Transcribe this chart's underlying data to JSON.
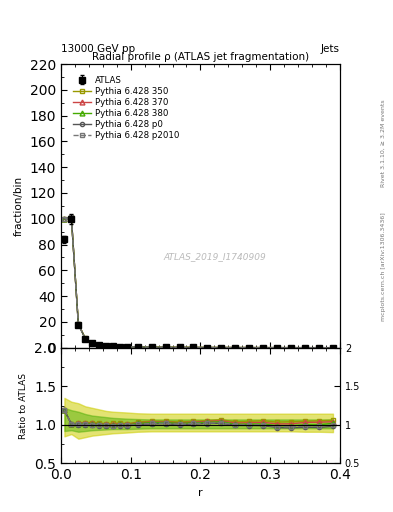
{
  "title_top": "13000 GeV pp",
  "title_right": "Jets",
  "plot_title": "Radial profile ρ (ATLAS jet fragmentation)",
  "xlabel": "r",
  "ylabel_main": "fraction/bin",
  "ylabel_ratio": "Ratio to ATLAS",
  "watermark": "ATLAS_2019_I1740909",
  "right_label_top": "Rivet 3.1.10, ≥ 3.2M events",
  "right_label_bottom": "mcplots.cern.ch [arXiv:1306.3436]",
  "xlim": [
    0.0,
    0.4
  ],
  "ylim_main": [
    0,
    220
  ],
  "ylim_ratio": [
    0.5,
    2.0
  ],
  "x_data": [
    0.005,
    0.015,
    0.025,
    0.035,
    0.045,
    0.055,
    0.065,
    0.075,
    0.085,
    0.095,
    0.11,
    0.13,
    0.15,
    0.17,
    0.19,
    0.21,
    0.23,
    0.25,
    0.27,
    0.29,
    0.31,
    0.33,
    0.35,
    0.37,
    0.39
  ],
  "atlas_y": [
    84,
    100,
    18,
    7,
    3.5,
    2.2,
    1.5,
    1.1,
    0.85,
    0.7,
    0.55,
    0.42,
    0.33,
    0.27,
    0.22,
    0.18,
    0.15,
    0.13,
    0.11,
    0.095,
    0.085,
    0.075,
    0.065,
    0.058,
    0.05
  ],
  "atlas_yerr": [
    3,
    4,
    0.8,
    0.3,
    0.15,
    0.1,
    0.07,
    0.05,
    0.04,
    0.03,
    0.025,
    0.02,
    0.015,
    0.012,
    0.01,
    0.009,
    0.008,
    0.007,
    0.006,
    0.005,
    0.004,
    0.004,
    0.003,
    0.003,
    0.002
  ],
  "py350_y": [
    100,
    101,
    18.5,
    7.2,
    3.6,
    2.25,
    1.52,
    1.12,
    0.87,
    0.71,
    0.57,
    0.44,
    0.345,
    0.28,
    0.23,
    0.19,
    0.16,
    0.135,
    0.115,
    0.1,
    0.088,
    0.078,
    0.068,
    0.061,
    0.053
  ],
  "py370_y": [
    100,
    101,
    18.4,
    7.15,
    3.57,
    2.23,
    1.51,
    1.11,
    0.86,
    0.705,
    0.565,
    0.435,
    0.342,
    0.277,
    0.228,
    0.188,
    0.158,
    0.133,
    0.113,
    0.098,
    0.086,
    0.076,
    0.067,
    0.06,
    0.052
  ],
  "py380_y": [
    100,
    101,
    18.3,
    7.1,
    3.55,
    2.22,
    1.5,
    1.1,
    0.855,
    0.7,
    0.56,
    0.432,
    0.34,
    0.275,
    0.226,
    0.186,
    0.156,
    0.131,
    0.111,
    0.096,
    0.084,
    0.074,
    0.065,
    0.058,
    0.051
  ],
  "pyp0_y": [
    100,
    101,
    18.0,
    7.0,
    3.48,
    2.18,
    1.48,
    1.08,
    0.84,
    0.69,
    0.55,
    0.425,
    0.335,
    0.27,
    0.222,
    0.183,
    0.153,
    0.129,
    0.109,
    0.094,
    0.082,
    0.072,
    0.063,
    0.056,
    0.049
  ],
  "pyp2010_y": [
    100,
    101,
    18.1,
    7.05,
    3.5,
    2.19,
    1.49,
    1.09,
    0.845,
    0.695,
    0.553,
    0.428,
    0.337,
    0.272,
    0.224,
    0.184,
    0.154,
    0.13,
    0.11,
    0.095,
    0.083,
    0.073,
    0.064,
    0.057,
    0.05
  ],
  "ratio_py350": [
    1.19,
    1.01,
    1.028,
    1.029,
    1.029,
    1.023,
    1.013,
    1.018,
    1.024,
    1.014,
    1.036,
    1.048,
    1.045,
    1.037,
    1.045,
    1.056,
    1.067,
    1.038,
    1.045,
    1.053,
    1.035,
    1.04,
    1.046,
    1.052,
    1.06
  ],
  "ratio_py370": [
    1.19,
    1.01,
    1.022,
    1.021,
    1.02,
    1.014,
    1.007,
    1.009,
    1.012,
    1.007,
    1.027,
    1.036,
    1.036,
    1.026,
    1.036,
    1.044,
    1.053,
    1.023,
    1.027,
    1.032,
    1.012,
    1.013,
    1.031,
    1.034,
    1.04
  ],
  "ratio_py380": [
    1.19,
    1.01,
    1.017,
    1.014,
    1.014,
    1.009,
    1.0,
    1.0,
    1.006,
    1.0,
    1.018,
    1.029,
    1.03,
    1.019,
    1.027,
    1.033,
    1.04,
    1.008,
    1.009,
    1.011,
    0.988,
    0.987,
    1.0,
    1.0,
    1.02
  ],
  "ratio_pyp0": [
    1.19,
    1.01,
    1.0,
    1.0,
    0.994,
    0.991,
    0.987,
    0.982,
    0.988,
    0.986,
    1.0,
    1.012,
    1.015,
    1.0,
    1.009,
    1.017,
    1.02,
    0.992,
    0.991,
    0.989,
    0.965,
    0.96,
    0.969,
    0.966,
    0.98
  ],
  "ratio_pyp2010": [
    1.19,
    1.01,
    1.006,
    1.007,
    1.0,
    0.995,
    0.993,
    0.991,
    0.994,
    0.993,
    1.005,
    1.019,
    1.021,
    1.007,
    1.018,
    1.022,
    1.027,
    1.0,
    1.0,
    1.0,
    0.976,
    0.973,
    0.985,
    0.983,
    1.0
  ],
  "band_yellow_lo": [
    0.85,
    0.88,
    0.82,
    0.84,
    0.86,
    0.87,
    0.88,
    0.89,
    0.895,
    0.9,
    0.91,
    0.915,
    0.915,
    0.915,
    0.915,
    0.915,
    0.915,
    0.915,
    0.915,
    0.915,
    0.915,
    0.915,
    0.91,
    0.91,
    0.905
  ],
  "band_yellow_hi": [
    1.35,
    1.3,
    1.28,
    1.24,
    1.22,
    1.2,
    1.18,
    1.17,
    1.165,
    1.16,
    1.15,
    1.145,
    1.145,
    1.145,
    1.145,
    1.145,
    1.145,
    1.145,
    1.145,
    1.145,
    1.145,
    1.145,
    1.145,
    1.145,
    1.145
  ],
  "band_green_lo": [
    0.92,
    0.93,
    0.91,
    0.92,
    0.93,
    0.935,
    0.94,
    0.945,
    0.945,
    0.945,
    0.95,
    0.955,
    0.955,
    0.955,
    0.955,
    0.955,
    0.955,
    0.955,
    0.955,
    0.955,
    0.955,
    0.955,
    0.955,
    0.955,
    0.955
  ],
  "band_green_hi": [
    1.22,
    1.19,
    1.17,
    1.14,
    1.12,
    1.11,
    1.1,
    1.09,
    1.085,
    1.08,
    1.075,
    1.07,
    1.07,
    1.07,
    1.07,
    1.07,
    1.07,
    1.07,
    1.07,
    1.07,
    1.07,
    1.07,
    1.07,
    1.07,
    1.07
  ],
  "color_atlas": "#000000",
  "color_py350": "#999900",
  "color_py370": "#cc4444",
  "color_py380": "#44aa00",
  "color_pyp0": "#555555",
  "color_pyp2010": "#777777",
  "color_band_yellow": "#cccc00",
  "color_band_green": "#44aa00",
  "legend_labels": [
    "ATLAS",
    "Pythia 6.428 350",
    "Pythia 6.428 370",
    "Pythia 6.428 380",
    "Pythia 6.428 p0",
    "Pythia 6.428 p2010"
  ],
  "yticks_main": [
    0,
    20,
    40,
    60,
    80,
    100,
    120,
    140,
    160,
    180,
    200,
    220
  ],
  "yticks_ratio": [
    0.5,
    1.0,
    1.5,
    2.0
  ],
  "xticks": [
    0.0,
    0.1,
    0.2,
    0.3,
    0.4
  ]
}
